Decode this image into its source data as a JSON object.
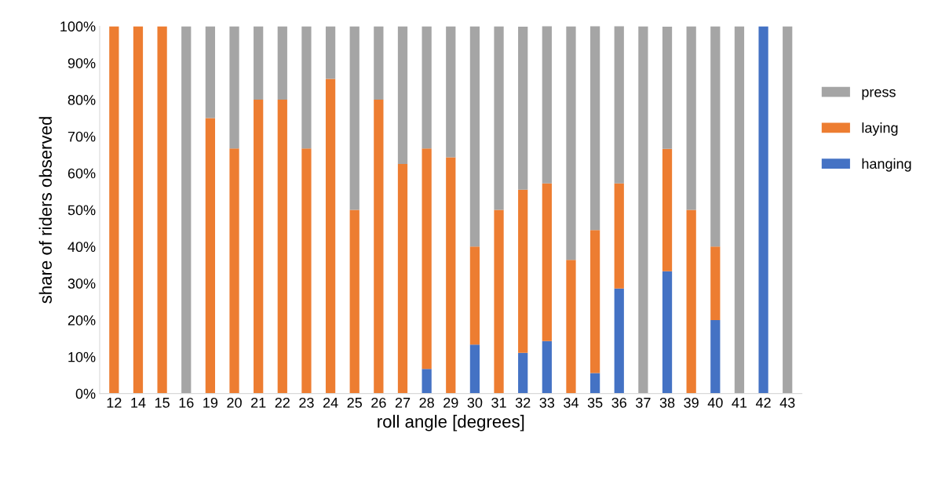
{
  "chart_data": {
    "type": "bar",
    "stacked": true,
    "xlabel": "roll angle [degrees]",
    "ylabel": "share of riders observed",
    "categories": [
      "12",
      "14",
      "15",
      "16",
      "19",
      "20",
      "21",
      "22",
      "23",
      "24",
      "25",
      "26",
      "27",
      "28",
      "29",
      "30",
      "31",
      "32",
      "33",
      "34",
      "35",
      "36",
      "37",
      "38",
      "39",
      "40",
      "41",
      "42",
      "43"
    ],
    "series": [
      {
        "name": "hanging",
        "color": "#4472c4",
        "values": [
          0,
          0,
          0,
          0,
          0,
          0,
          0,
          0,
          0,
          0,
          0,
          0,
          0,
          6.7,
          0,
          13.3,
          0,
          11.1,
          14.3,
          0,
          5.6,
          28.6,
          0,
          33.3,
          0,
          20,
          0,
          100,
          0
        ]
      },
      {
        "name": "laying",
        "color": "#ed7d31",
        "values": [
          100,
          100,
          100,
          0,
          75,
          66.7,
          80,
          80,
          66.7,
          85.7,
          50,
          80,
          62.5,
          60,
          64.3,
          26.7,
          50,
          44.4,
          42.9,
          36.4,
          38.9,
          28.6,
          0,
          33.3,
          50,
          20,
          0,
          0,
          0
        ]
      },
      {
        "name": "press",
        "color": "#a5a5a5",
        "values": [
          0,
          0,
          0,
          100,
          25,
          33.3,
          20,
          20,
          33.3,
          14.3,
          50,
          20,
          37.5,
          33.3,
          35.7,
          60,
          50,
          44.4,
          42.9,
          63.6,
          55.6,
          42.9,
          100,
          33.3,
          50,
          60,
          100,
          0,
          100
        ]
      }
    ],
    "ylim": [
      0,
      100
    ],
    "yticks": [
      {
        "value": 0,
        "label": "0%"
      },
      {
        "value": 10,
        "label": "10%"
      },
      {
        "value": 20,
        "label": "20%"
      },
      {
        "value": 30,
        "label": "30%"
      },
      {
        "value": 40,
        "label": "40%"
      },
      {
        "value": 50,
        "label": "50%"
      },
      {
        "value": 60,
        "label": "60%"
      },
      {
        "value": 70,
        "label": "70%"
      },
      {
        "value": 80,
        "label": "80%"
      },
      {
        "value": 90,
        "label": "90%"
      },
      {
        "value": 100,
        "label": "100%"
      }
    ],
    "legend": "right",
    "grid": false
  }
}
